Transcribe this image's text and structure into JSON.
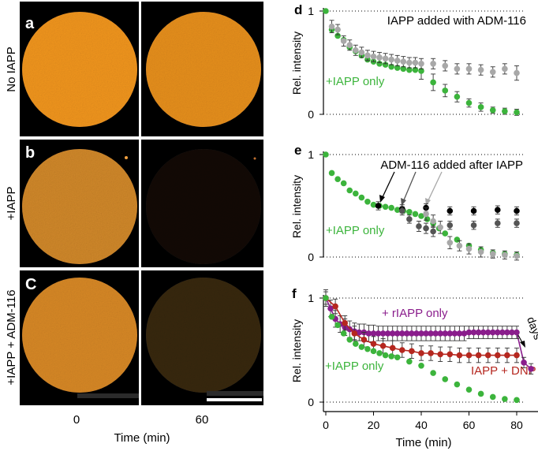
{
  "figure": {
    "micrograph_panels": [
      {
        "letter": "a",
        "row_label": "No IAPP",
        "frame_colors": [
          "#f0951e",
          "#ee941f"
        ],
        "frame_opacity": [
          1.0,
          0.97
        ]
      },
      {
        "letter": "b",
        "row_label": "+IAPP",
        "frame_colors": [
          "#e0922e",
          "#2a170b"
        ],
        "frame_opacity": [
          0.93,
          0.45
        ]
      },
      {
        "letter": "c",
        "row_label": "+IAPP + ADM-116",
        "frame_colors": [
          "#e39028",
          "#5d4317"
        ],
        "frame_opacity": [
          0.95,
          0.6
        ]
      }
    ],
    "time_ticks": [
      "0",
      "60"
    ],
    "time_label": "Time (min)"
  },
  "chart_data": [
    {
      "type": "scatter",
      "panel": "d",
      "ylabel": "Rel. intensity",
      "yticks": [
        "0",
        "1"
      ],
      "ylim": [
        0,
        1.05
      ],
      "xlim": [
        -2,
        88
      ],
      "grid": "dotted lines at y=0 and y=1",
      "annotations": [
        "IAPP added with ADM-116",
        "+IAPP only"
      ],
      "series": [
        {
          "name": "+IAPP only",
          "color": "#3cb43c",
          "x": [
            0,
            2.5,
            5,
            7.5,
            10,
            12.5,
            15,
            17.5,
            20,
            22.5,
            25,
            27.5,
            30,
            32.5,
            35,
            37.5,
            40,
            45,
            50,
            55,
            60,
            65,
            70,
            75,
            80
          ],
          "y": [
            1.0,
            0.82,
            0.76,
            0.72,
            0.65,
            0.61,
            0.57,
            0.53,
            0.51,
            0.49,
            0.48,
            0.46,
            0.45,
            0.44,
            0.43,
            0.43,
            0.42,
            0.31,
            0.23,
            0.17,
            0.11,
            0.07,
            0.04,
            0.03,
            0.02
          ],
          "err": [
            0,
            0,
            0,
            0,
            0,
            0,
            0,
            0,
            0,
            0,
            0,
            0,
            0,
            0,
            0,
            0,
            0.08,
            0.08,
            0.06,
            0.05,
            0.04,
            0.04,
            0.03,
            0.03,
            0.03
          ]
        },
        {
          "name": "IAPP added with ADM-116",
          "color": "#a8a8a8",
          "x": [
            2.5,
            5,
            7.5,
            10,
            12.5,
            15,
            17.5,
            20,
            22.5,
            25,
            27.5,
            30,
            32.5,
            35,
            37.5,
            40,
            45,
            50,
            55,
            60,
            65,
            70,
            75,
            80
          ],
          "y": [
            0.85,
            0.82,
            0.71,
            0.67,
            0.62,
            0.6,
            0.57,
            0.56,
            0.55,
            0.54,
            0.53,
            0.52,
            0.51,
            0.5,
            0.5,
            0.49,
            0.49,
            0.47,
            0.44,
            0.44,
            0.43,
            0.41,
            0.44,
            0.4
          ],
          "err": [
            0.06,
            0.05,
            0.05,
            0.05,
            0.05,
            0.05,
            0.05,
            0.05,
            0.05,
            0.05,
            0.05,
            0.05,
            0.05,
            0.05,
            0.05,
            0.05,
            0.05,
            0.05,
            0.05,
            0.05,
            0.05,
            0.05,
            0.05,
            0.07
          ]
        }
      ]
    },
    {
      "type": "scatter",
      "panel": "e",
      "ylabel": "Rel. intensity",
      "yticks": [
        "0",
        "1"
      ],
      "ylim": [
        0,
        1.05
      ],
      "xlim": [
        -2,
        88
      ],
      "grid": "dotted lines at y=0 and y=1",
      "annotations": [
        "ADM-116 added after IAPP",
        "+IAPP only"
      ],
      "series": [
        {
          "name": "+IAPP only",
          "color": "#3cb43c",
          "x": [
            0,
            2.5,
            5,
            7.5,
            10,
            12.5,
            15,
            17.5,
            20,
            22.5,
            25,
            27.5,
            30,
            32.5,
            35,
            37.5,
            40,
            42.5,
            45,
            47.5,
            50,
            55,
            60,
            65,
            70,
            75,
            80
          ],
          "y": [
            1.0,
            0.82,
            0.76,
            0.72,
            0.65,
            0.62,
            0.58,
            0.54,
            0.51,
            0.5,
            0.49,
            0.48,
            0.46,
            0.45,
            0.44,
            0.42,
            0.4,
            0.37,
            0.33,
            0.28,
            0.23,
            0.17,
            0.11,
            0.07,
            0.04,
            0.03,
            0.02
          ],
          "err": [
            0,
            0,
            0,
            0,
            0,
            0,
            0,
            0,
            0,
            0,
            0,
            0,
            0,
            0,
            0,
            0,
            0,
            0,
            0,
            0,
            0,
            0,
            0,
            0,
            0,
            0,
            0
          ]
        },
        {
          "name": "",
          "color": "#000000",
          "x": [
            22,
            32,
            42,
            52,
            62,
            72,
            80
          ],
          "y": [
            0.5,
            0.47,
            0.48,
            0.45,
            0.45,
            0.46,
            0.45
          ],
          "err": [
            0.04,
            0.04,
            0.04,
            0.04,
            0.04,
            0.04,
            0.04
          ]
        },
        {
          "name": "",
          "color": "#555555",
          "x": [
            32,
            35,
            39,
            42,
            45,
            52,
            62,
            72,
            80
          ],
          "y": [
            0.45,
            0.37,
            0.3,
            0.28,
            0.25,
            0.31,
            0.31,
            0.33,
            0.33
          ],
          "err": [
            0.04,
            0.04,
            0.05,
            0.05,
            0.05,
            0.04,
            0.04,
            0.04,
            0.04
          ]
        },
        {
          "name": "",
          "color": "#a8a8a8",
          "x": [
            42,
            45,
            48,
            52,
            56,
            60,
            65,
            70,
            75,
            80
          ],
          "y": [
            0.42,
            0.35,
            0.29,
            0.14,
            0.11,
            0.08,
            0.05,
            0.03,
            0.02,
            0.01
          ],
          "err": [
            0.06,
            0.06,
            0.06,
            0.06,
            0.05,
            0.05,
            0.05,
            0.04,
            0.04,
            0.04
          ]
        }
      ]
    },
    {
      "type": "line",
      "panel": "f",
      "xlabel": "Time (min)",
      "ylabel": "Rel. intensity",
      "xticks": [
        "0",
        "20",
        "40",
        "60",
        "80"
      ],
      "yticks": [
        "0",
        "1"
      ],
      "ylim": [
        0,
        1.05
      ],
      "xlim": [
        -2,
        88
      ],
      "grid": "dotted lines at y=0 and y=1",
      "annotations": [
        "+ rIAPP only",
        "days",
        "IAPP + DNP",
        "+IAPP only"
      ],
      "series": [
        {
          "name": "+ rIAPP only",
          "color": "#8a1d8c",
          "line": true,
          "x": [
            0,
            2,
            4,
            6,
            8,
            10,
            12,
            14,
            16,
            18,
            20,
            22,
            24,
            26,
            28,
            30,
            32,
            34,
            36,
            38,
            40,
            42,
            44,
            46,
            48,
            50,
            52,
            54,
            56,
            58,
            60,
            62,
            64,
            66,
            68,
            70,
            72,
            74,
            76,
            78,
            80,
            83,
            86
          ],
          "y": [
            1.0,
            0.9,
            0.8,
            0.75,
            0.72,
            0.7,
            0.68,
            0.67,
            0.67,
            0.66,
            0.66,
            0.66,
            0.66,
            0.66,
            0.66,
            0.66,
            0.66,
            0.66,
            0.66,
            0.66,
            0.66,
            0.66,
            0.66,
            0.66,
            0.66,
            0.66,
            0.66,
            0.66,
            0.66,
            0.66,
            0.67,
            0.67,
            0.67,
            0.67,
            0.67,
            0.67,
            0.67,
            0.67,
            0.67,
            0.67,
            0.67,
            0.38,
            0.32
          ],
          "err": [
            0.08,
            0.08,
            0.08,
            0.08,
            0.08,
            0.08,
            0.08,
            0.08,
            0.08,
            0.08,
            0.08,
            0.07,
            0.07,
            0.07,
            0.07,
            0.07,
            0.07,
            0.07,
            0.07,
            0.07,
            0.07,
            0.07,
            0.07,
            0.07,
            0.07,
            0.07,
            0.07,
            0.07,
            0.07,
            0.07,
            0.06,
            0.06,
            0.06,
            0.06,
            0.06,
            0.06,
            0.06,
            0.06,
            0.06,
            0.06,
            0.06,
            0.05,
            0.05
          ]
        },
        {
          "name": "IAPP + DNP",
          "color": "#b5271f",
          "line": true,
          "x": [
            0,
            4,
            8,
            12,
            16,
            20,
            24,
            28,
            32,
            36,
            40,
            44,
            48,
            52,
            56,
            60,
            64,
            68,
            72,
            76,
            80
          ],
          "y": [
            1.0,
            0.92,
            0.76,
            0.66,
            0.6,
            0.56,
            0.54,
            0.52,
            0.5,
            0.49,
            0.47,
            0.47,
            0.46,
            0.46,
            0.45,
            0.45,
            0.45,
            0.45,
            0.45,
            0.45,
            0.45
          ],
          "err": [
            0.06,
            0.07,
            0.07,
            0.07,
            0.07,
            0.07,
            0.07,
            0.07,
            0.07,
            0.07,
            0.07,
            0.07,
            0.07,
            0.07,
            0.07,
            0.07,
            0.07,
            0.07,
            0.07,
            0.07,
            0.07
          ]
        },
        {
          "name": "+IAPP only",
          "color": "#3cb43c",
          "line": false,
          "x": [
            0,
            2.5,
            5,
            7.5,
            10,
            12.5,
            15,
            17.5,
            20,
            22.5,
            25,
            27.5,
            30,
            35,
            40,
            45,
            50,
            55,
            60,
            65,
            70,
            75,
            80
          ],
          "y": [
            1.0,
            0.82,
            0.74,
            0.66,
            0.6,
            0.56,
            0.53,
            0.51,
            0.49,
            0.47,
            0.45,
            0.44,
            0.43,
            0.39,
            0.35,
            0.28,
            0.22,
            0.17,
            0.12,
            0.08,
            0.05,
            0.03,
            0.02
          ],
          "err": [
            0,
            0,
            0,
            0,
            0,
            0,
            0,
            0,
            0,
            0,
            0,
            0,
            0,
            0,
            0,
            0,
            0,
            0,
            0,
            0,
            0,
            0,
            0
          ]
        }
      ]
    }
  ]
}
